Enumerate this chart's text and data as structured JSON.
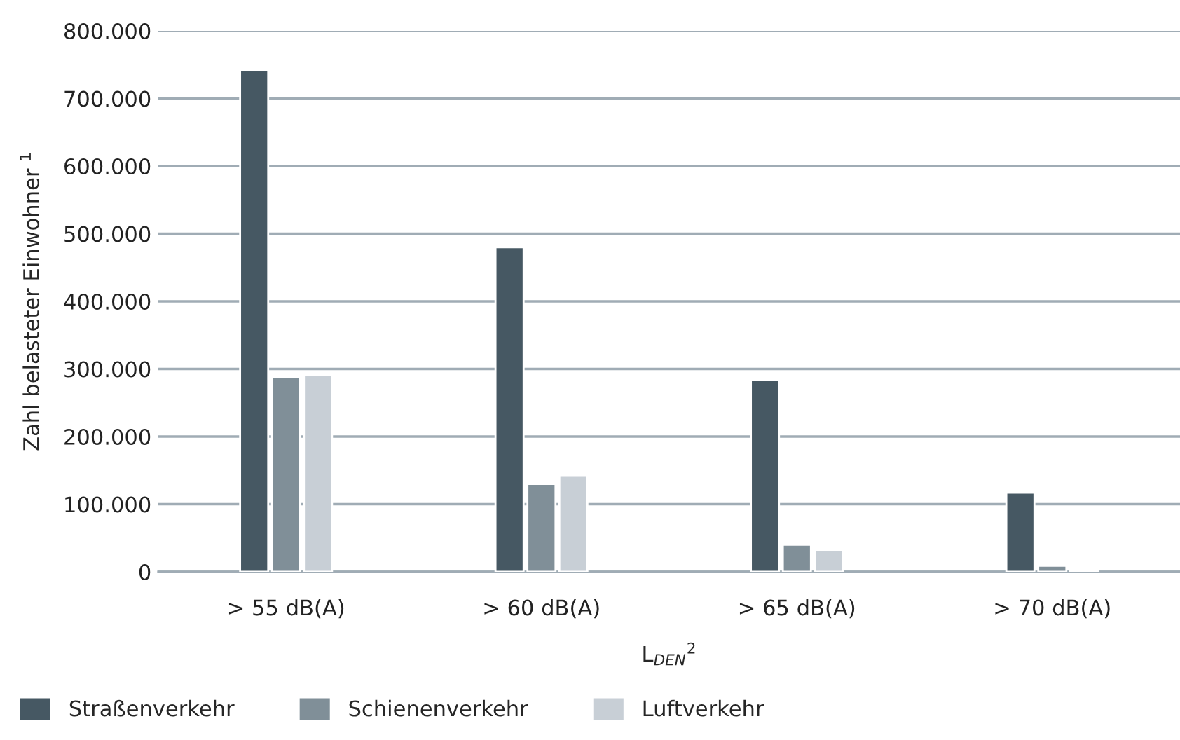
{
  "chart_data": {
    "type": "bar",
    "categories": [
      "> 55 dB(A)",
      "> 60 dB(A)",
      "> 65 dB(A)",
      "> 70 dB(A)"
    ],
    "xlabel": "L$_{DEN}$$^{2}$",
    "ylabel": "Zahl belasteter Einwohner $^{1}$",
    "series": [
      {
        "name": "Straßenverkehr",
        "color": "#465863",
        "values": [
          742000,
          480000,
          284000,
          117000
        ]
      },
      {
        "name": "Schienenverkehr",
        "color": "#808f98",
        "values": [
          288000,
          130000,
          40000,
          9000
        ]
      },
      {
        "name": "Luftverkehr",
        "color": "#c8cfd6",
        "values": [
          291000,
          143000,
          32000,
          3000
        ]
      }
    ],
    "ylim": [
      0,
      800000
    ],
    "yticks": [
      {
        "value": 0,
        "label": "0"
      },
      {
        "value": 100000,
        "label": "100.000"
      },
      {
        "value": 200000,
        "label": "200.000"
      },
      {
        "value": 300000,
        "label": "300.000"
      },
      {
        "value": 400000,
        "label": "400.000"
      },
      {
        "value": 500000,
        "label": "500.000"
      },
      {
        "value": 600000,
        "label": "600.000"
      },
      {
        "value": 700000,
        "label": "700.000"
      },
      {
        "value": 800000,
        "label": "800.000"
      }
    ],
    "grid": "y",
    "legend": "bottom left"
  }
}
